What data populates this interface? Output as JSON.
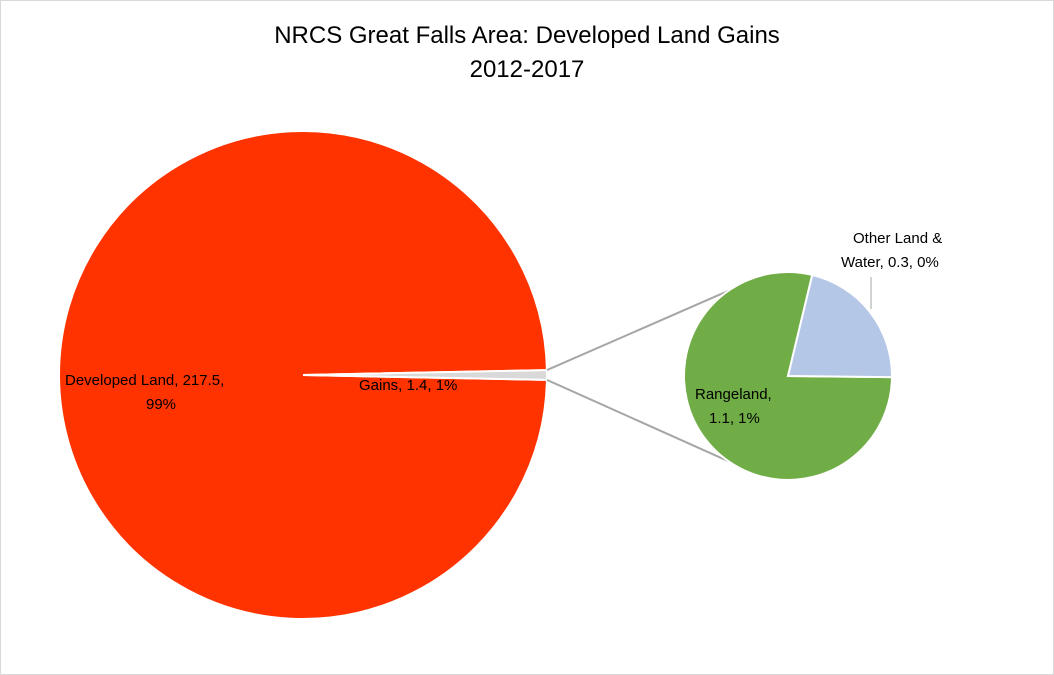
{
  "chart_data": {
    "type": "pie",
    "subtype": "pie-of-pie",
    "title": "NRCS Great Falls Area: Developed Land Gains",
    "subtitle": "2012-2017",
    "main_pie": {
      "slices": [
        {
          "label": "Developed Land",
          "value": 217.5,
          "percent": "99%",
          "color": "#ff3300"
        },
        {
          "label": "Gains",
          "value": 1.4,
          "percent": "1%",
          "color": "#d9d9d9"
        }
      ]
    },
    "secondary_pie": {
      "slices": [
        {
          "label": "Rangeland",
          "value": 1.1,
          "percent": "1%",
          "color": "#70ad47"
        },
        {
          "label": "Other Land & Water",
          "value": 0.3,
          "percent": "0%",
          "color": "#b4c7e7"
        }
      ]
    },
    "labels": {
      "developed_line1": "Developed Land, 217.5,",
      "developed_line2": "99%",
      "gains": "Gains, 1.4, 1%",
      "rangeland_line1": "Rangeland,",
      "rangeland_line2": "1.1, 1%",
      "other_line1": "Other Land &",
      "other_line2": "Water, 0.3, 0%"
    },
    "connector_color": "#a6a6a6"
  }
}
